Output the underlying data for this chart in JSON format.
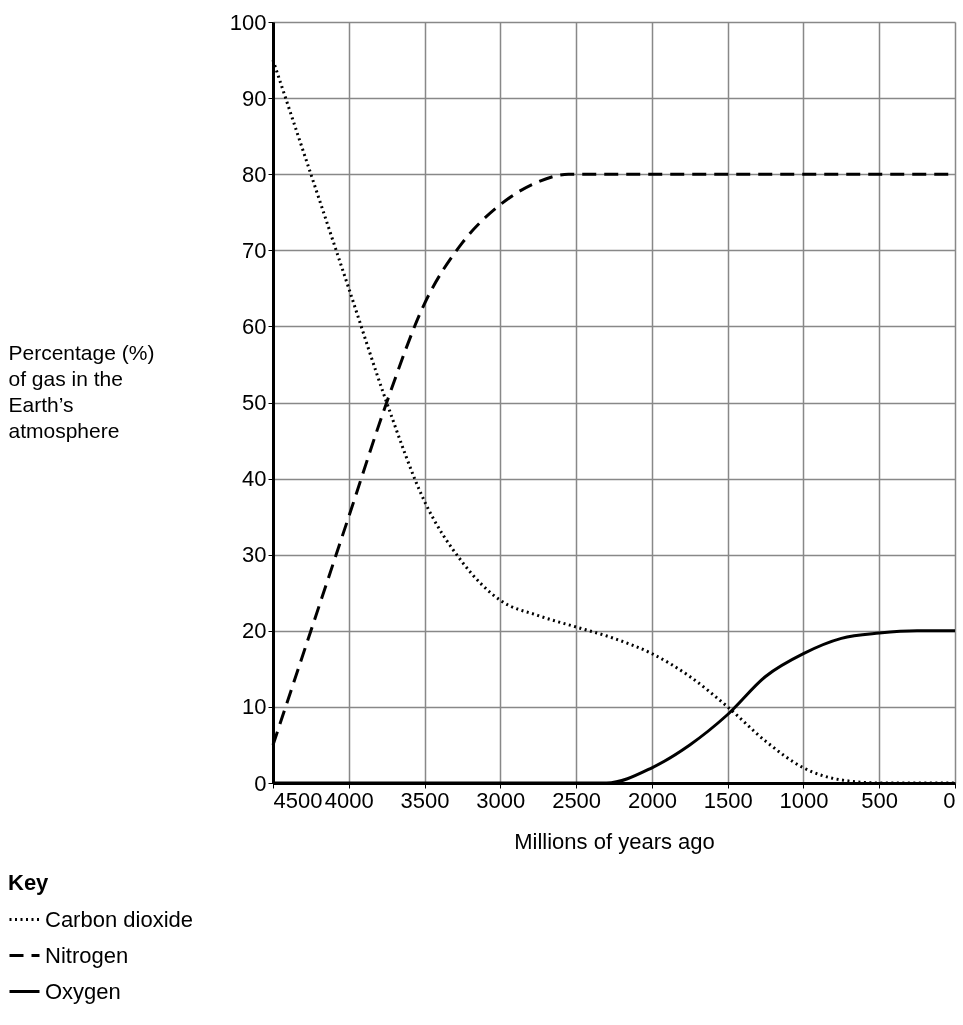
{
  "chart_data": {
    "type": "line",
    "xlabel": "Millions of years ago",
    "ylabel": "Percentage (%) of gas in the Earth’s atmosphere",
    "legend_title": "Key",
    "xlim": [
      4500,
      0
    ],
    "ylim": [
      0,
      100
    ],
    "xticks": [
      4500,
      4000,
      3500,
      3000,
      2500,
      2000,
      1500,
      1000,
      500,
      0
    ],
    "yticks": [
      0,
      10,
      20,
      30,
      40,
      50,
      60,
      70,
      80,
      90,
      100
    ],
    "grid": true,
    "legend": "bottom left",
    "marker": "none",
    "series": [
      {
        "name": "Carbon dioxide",
        "color": "#000000",
        "line_style": "dotted",
        "x": [
          4500,
          4250,
          4000,
          3750,
          3500,
          3250,
          3000,
          2750,
          2500,
          2250,
          2000,
          1750,
          1500,
          1250,
          1000,
          750,
          500,
          250,
          0
        ],
        "values": [
          95,
          80,
          65,
          50,
          37,
          29,
          24,
          22,
          20.5,
          19,
          17,
          14,
          10,
          5.5,
          2,
          0.4,
          0,
          0,
          0
        ]
      },
      {
        "name": "Nitrogen",
        "color": "#000000",
        "line_style": "dashed",
        "x": [
          4500,
          4250,
          4000,
          3750,
          3500,
          3250,
          3000,
          2750,
          2550,
          2000,
          1000,
          0
        ],
        "values": [
          5,
          20,
          35,
          50,
          63,
          71,
          76,
          79,
          80,
          80,
          80,
          80
        ]
      },
      {
        "name": "Oxygen",
        "color": "#000000",
        "line_style": "solid",
        "x": [
          4500,
          3000,
          2300,
          2000,
          1750,
          1500,
          1250,
          1000,
          750,
          500,
          250,
          0
        ],
        "values": [
          0,
          0,
          0,
          2,
          5,
          9,
          14,
          17,
          19,
          19.7,
          20,
          20
        ]
      }
    ]
  }
}
